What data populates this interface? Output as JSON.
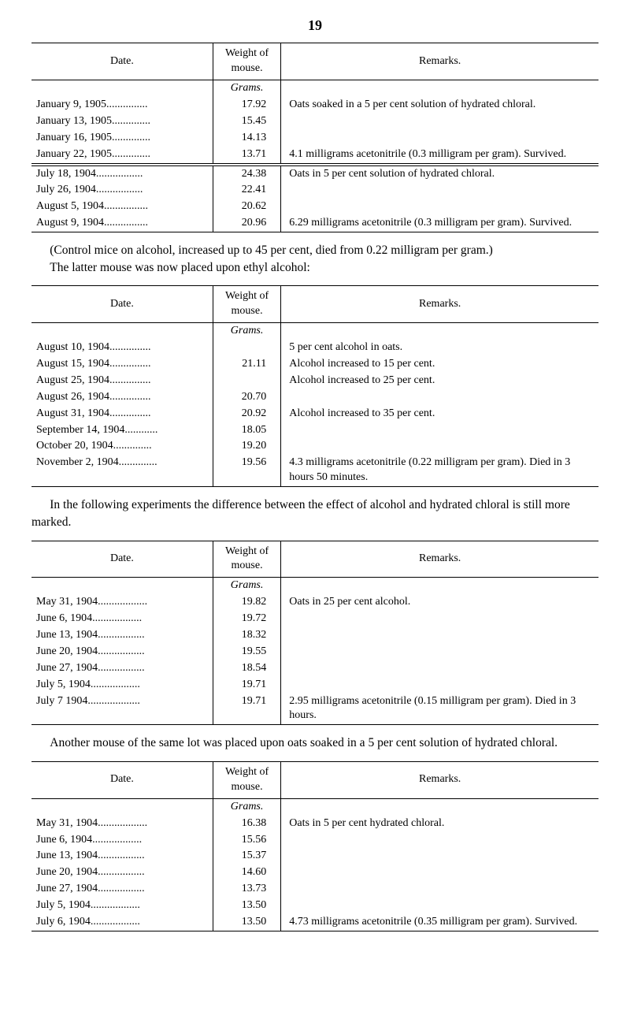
{
  "page_number": "19",
  "table1": {
    "headers": {
      "date": "Date.",
      "weight": "Weight of mouse.",
      "remarks": "Remarks."
    },
    "unit": "Grams.",
    "section_a": [
      {
        "date": "January 9, 1905",
        "weight": "17.92",
        "remarks": "Oats soaked in a 5 per cent solution of hydrated chloral."
      },
      {
        "date": "January 13, 1905",
        "weight": "15.45",
        "remarks": ""
      },
      {
        "date": "January 16, 1905",
        "weight": "14.13",
        "remarks": ""
      },
      {
        "date": "January 22, 1905",
        "weight": "13.71",
        "remarks": "4.1 milligrams acetonitrile (0.3 milligram per gram). Survived."
      }
    ],
    "section_b": [
      {
        "date": "July 18, 1904",
        "weight": "24.38",
        "remarks": "Oats in 5 per cent solution of hydrated chloral."
      },
      {
        "date": "July 26, 1904",
        "weight": "22.41",
        "remarks": ""
      },
      {
        "date": "August 5, 1904",
        "weight": "20.62",
        "remarks": ""
      },
      {
        "date": "August 9, 1904",
        "weight": "20.96",
        "remarks": "6.29 milligrams acetonitrile (0.3 milligram per gram). Survived."
      }
    ]
  },
  "para1": "(Control mice on alcohol, increased up to 45 per cent, died from 0.22 milligram per gram.)",
  "para1b": "The latter mouse was now placed upon ethyl alcohol:",
  "table2": {
    "headers": {
      "date": "Date.",
      "weight": "Weight of mouse.",
      "remarks": "Remarks."
    },
    "unit": "Grams.",
    "rows": [
      {
        "date": "August 10, 1904",
        "weight": "",
        "remarks": "5 per cent alcohol in oats."
      },
      {
        "date": "August 15, 1904",
        "weight": "21.11",
        "remarks": "Alcohol increased to 15 per cent."
      },
      {
        "date": "August 25, 1904",
        "weight": "",
        "remarks": "Alcohol increased to 25 per cent."
      },
      {
        "date": "August 26, 1904",
        "weight": "20.70",
        "remarks": ""
      },
      {
        "date": "August 31, 1904",
        "weight": "20.92",
        "remarks": "Alcohol increased to 35 per cent."
      },
      {
        "date": "September 14, 1904",
        "weight": "18.05",
        "remarks": ""
      },
      {
        "date": "October 20, 1904",
        "weight": "19.20",
        "remarks": ""
      },
      {
        "date": "November 2, 1904",
        "weight": "19.56",
        "remarks": "4.3 milligrams acetonitrile (0.22 milligram per gram). Died in 3 hours 50 minutes."
      }
    ]
  },
  "para2": "In the following experiments the difference between the effect of alcohol and hydrated chloral is still more marked.",
  "table3": {
    "headers": {
      "date": "Date.",
      "weight": "Weight of mouse.",
      "remarks": "Remarks."
    },
    "unit": "Grams.",
    "rows": [
      {
        "date": "May 31, 1904",
        "weight": "19.82",
        "remarks": "Oats in 25 per cent alcohol."
      },
      {
        "date": "June 6, 1904",
        "weight": "19.72",
        "remarks": ""
      },
      {
        "date": "June 13, 1904",
        "weight": "18.32",
        "remarks": ""
      },
      {
        "date": "June 20, 1904",
        "weight": "19.55",
        "remarks": ""
      },
      {
        "date": "June 27, 1904",
        "weight": "18.54",
        "remarks": ""
      },
      {
        "date": "July 5, 1904",
        "weight": "19.71",
        "remarks": ""
      },
      {
        "date": "July 7 1904",
        "weight": "19.71",
        "remarks": "2.95 milligrams acetonitrile (0.15 milligram per gram). Died in 3 hours."
      }
    ]
  },
  "para3": "Another mouse of the same lot was placed upon oats soaked in a 5 per cent solution of hydrated chloral.",
  "table4": {
    "headers": {
      "date": "Date.",
      "weight": "Weight of mouse.",
      "remarks": "Remarks."
    },
    "unit": "Grams.",
    "rows": [
      {
        "date": "May 31, 1904",
        "weight": "16.38",
        "remarks": "Oats in 5 per cent hydrated chloral."
      },
      {
        "date": "June 6, 1904",
        "weight": "15.56",
        "remarks": ""
      },
      {
        "date": "June 13, 1904",
        "weight": "15.37",
        "remarks": ""
      },
      {
        "date": "June 20, 1904",
        "weight": "14.60",
        "remarks": ""
      },
      {
        "date": "June 27, 1904",
        "weight": "13.73",
        "remarks": ""
      },
      {
        "date": "July 5, 1904",
        "weight": "13.50",
        "remarks": ""
      },
      {
        "date": "July 6, 1904",
        "weight": "13.50",
        "remarks": "4.73 milligrams acetonitrile (0.35 milligram per gram). Survived."
      }
    ]
  }
}
